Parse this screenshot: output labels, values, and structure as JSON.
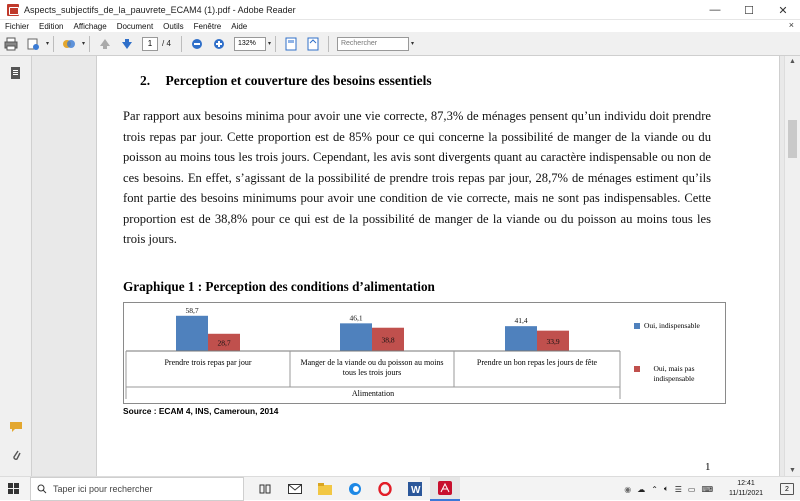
{
  "window": {
    "title": "Aspects_subjectifs_de_la_pauvrete_ECAM4 (1).pdf - Adobe Reader",
    "min": "—",
    "max": "☐",
    "close": "✕"
  },
  "menu": {
    "items": [
      "Fichier",
      "Edition",
      "Affichage",
      "Document",
      "Outils",
      "Fenêtre",
      "Aide"
    ],
    "close": "×"
  },
  "toolbar": {
    "page": "1",
    "page_total": "/ 4",
    "zoom": "132%",
    "search_placeholder": "Rechercher"
  },
  "doc": {
    "heading_num": "2.",
    "heading_text": "Perception et couverture des besoins essentiels",
    "paragraph": "Par rapport aux besoins minima pour avoir une vie correcte, 87,3% de ménages pensent qu’un individu doit prendre trois repas par jour. Cette proportion est de 85% pour ce qui concerne la possibilité de manger de la viande ou du poisson au moins tous les trois jours. Cependant, les avis sont divergents quant au caractère indispensable ou non de ces besoins. En effet, s’agissant de la possibilité de prendre trois repas par jour, 28,7% de ménages estiment qu’ils font partie des besoins minimums pour avoir une condition de vie correcte, mais ne sont pas indispensables. Cette proportion est de 38,8% pour ce qui est de la possibilité de manger de la viande ou du poisson au moins tous les trois jours.",
    "chart_title": "Graphique 1 : Perception des conditions d’alimentation",
    "source": "Source : ECAM 4, INS, Cameroun, 2014",
    "page_number": "1"
  },
  "chart_data": {
    "type": "bar",
    "title": "",
    "xlabel": "Alimentation",
    "categories": [
      "Prendre trois repas par jour",
      "Manger de la viande ou du poisson au moins tous les trois jours",
      "Prendre un bon repas les jours de fête"
    ],
    "series": [
      {
        "name": "Oui, indispensable",
        "values": [
          58.7,
          46.1,
          41.4
        ],
        "labels": [
          "58,7",
          "46,1",
          "41,4"
        ],
        "color": "#4f81bd"
      },
      {
        "name": "Oui, mais pas indispensable",
        "values": [
          28.7,
          38.8,
          33.9
        ],
        "labels": [
          "28,7",
          "38,8",
          "33,9"
        ],
        "color": "#c0504d"
      }
    ],
    "ylim": [
      0,
      60
    ],
    "grid": false,
    "legend": "right"
  },
  "taskbar": {
    "search_placeholder": "Taper ici pour rechercher",
    "time": "12:41",
    "date": "11/11/2021",
    "notifications": "2"
  }
}
